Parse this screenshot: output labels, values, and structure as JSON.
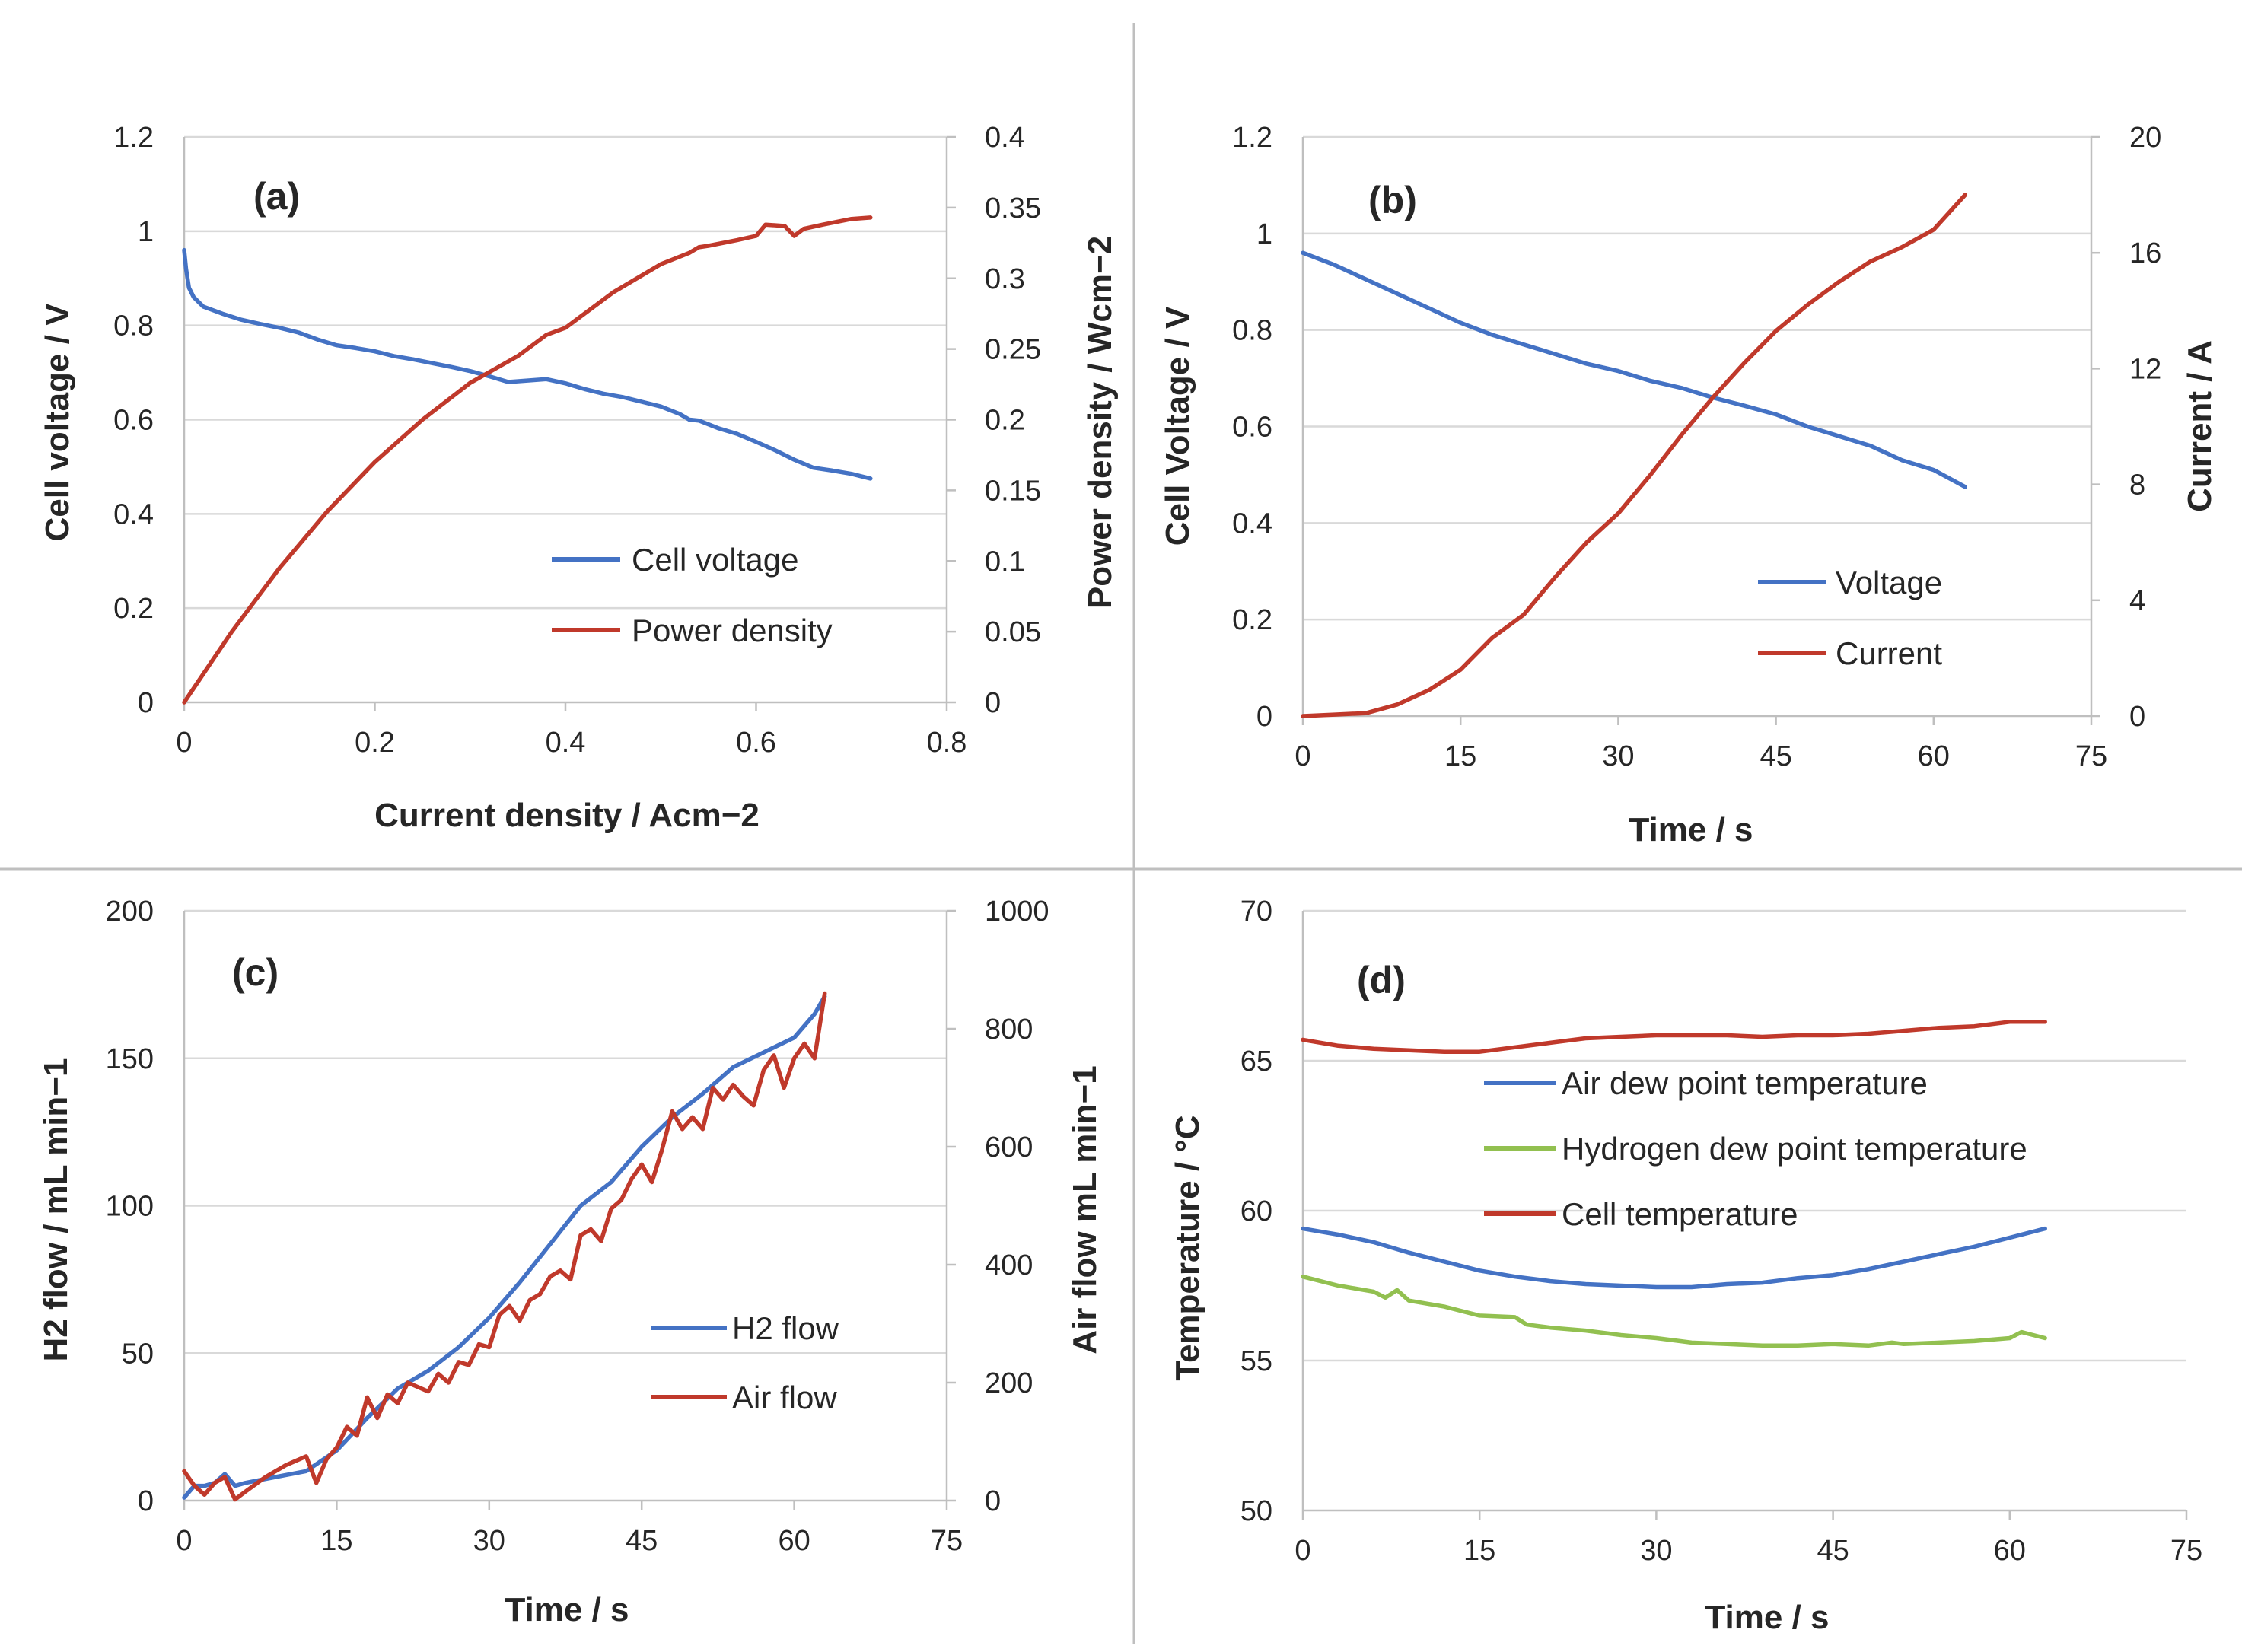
{
  "colors": {
    "blue": "#4472c4",
    "red": "#c0392b",
    "green": "#92c050"
  },
  "chart_data": [
    {
      "id": "a",
      "type": "line",
      "panel_label": "(a)",
      "xlabel": "Current density / Acm−2",
      "ylabel": "Cell voltage / V",
      "y2label": "Power density / Wcm−2",
      "xlim": [
        0,
        0.8
      ],
      "ylim": [
        0,
        1.2
      ],
      "y2lim": [
        0,
        0.4
      ],
      "xticks": [
        "0",
        "0.2",
        "0.4",
        "0.6",
        "0.8"
      ],
      "yticks": [
        "0",
        "0.2",
        "0.4",
        "0.6",
        "0.8",
        "1",
        "1.2"
      ],
      "y2ticks": [
        "0",
        "0.05",
        "0.1",
        "0.15",
        "0.2",
        "0.25",
        "0.3",
        "0.35",
        "0.4"
      ],
      "legend_position": "lower-right",
      "series": [
        {
          "name": "Cell voltage",
          "color": "blue",
          "axis": "left",
          "x": [
            0,
            0.002,
            0.005,
            0.01,
            0.02,
            0.04,
            0.06,
            0.08,
            0.1,
            0.12,
            0.14,
            0.16,
            0.18,
            0.2,
            0.22,
            0.24,
            0.26,
            0.28,
            0.3,
            0.32,
            0.34,
            0.36,
            0.38,
            0.4,
            0.42,
            0.44,
            0.46,
            0.48,
            0.5,
            0.52,
            0.53,
            0.54,
            0.56,
            0.58,
            0.6,
            0.62,
            0.64,
            0.66,
            0.68,
            0.7,
            0.72
          ],
          "y": [
            0.96,
            0.92,
            0.88,
            0.86,
            0.84,
            0.825,
            0.812,
            0.803,
            0.795,
            0.785,
            0.77,
            0.758,
            0.752,
            0.745,
            0.735,
            0.728,
            0.72,
            0.712,
            0.703,
            0.692,
            0.68,
            0.683,
            0.686,
            0.677,
            0.665,
            0.655,
            0.648,
            0.638,
            0.628,
            0.612,
            0.6,
            0.598,
            0.582,
            0.57,
            0.553,
            0.535,
            0.515,
            0.498,
            0.492,
            0.485,
            0.475
          ]
        },
        {
          "name": "Power density",
          "color": "red",
          "axis": "right",
          "x": [
            0,
            0.05,
            0.1,
            0.15,
            0.2,
            0.25,
            0.3,
            0.35,
            0.38,
            0.4,
            0.45,
            0.5,
            0.53,
            0.54,
            0.55,
            0.58,
            0.6,
            0.61,
            0.63,
            0.64,
            0.65,
            0.67,
            0.7,
            0.72
          ],
          "y": [
            0,
            0.05,
            0.095,
            0.135,
            0.17,
            0.2,
            0.226,
            0.245,
            0.26,
            0.265,
            0.29,
            0.31,
            0.318,
            0.322,
            0.323,
            0.327,
            0.33,
            0.338,
            0.337,
            0.33,
            0.335,
            0.338,
            0.342,
            0.343
          ]
        }
      ]
    },
    {
      "id": "b",
      "type": "line",
      "panel_label": "(b)",
      "xlabel": "Time / s",
      "ylabel": "Cell Voltage / V",
      "y2label": "Current / A",
      "xlim": [
        0,
        75
      ],
      "ylim": [
        0,
        1.2
      ],
      "y2lim": [
        0,
        20
      ],
      "xticks": [
        "0",
        "15",
        "30",
        "45",
        "60",
        "75"
      ],
      "yticks": [
        "0",
        "0.2",
        "0.4",
        "0.6",
        "0.8",
        "1",
        "1.2"
      ],
      "y2ticks": [
        "0",
        "4",
        "8",
        "12",
        "16",
        "20"
      ],
      "legend_position": "lower-right",
      "series": [
        {
          "name": "Voltage",
          "color": "blue",
          "axis": "left",
          "x": [
            0,
            3,
            6,
            9,
            12,
            15,
            18,
            21,
            24,
            27,
            30,
            33,
            36,
            39,
            42,
            45,
            48,
            51,
            54,
            57,
            60,
            63
          ],
          "y": [
            0.96,
            0.935,
            0.905,
            0.875,
            0.845,
            0.815,
            0.79,
            0.77,
            0.75,
            0.73,
            0.715,
            0.695,
            0.68,
            0.66,
            0.643,
            0.625,
            0.6,
            0.58,
            0.56,
            0.53,
            0.51,
            0.475
          ]
        },
        {
          "name": "Current",
          "color": "red",
          "axis": "right",
          "x": [
            0,
            3,
            6,
            9,
            12,
            15,
            18,
            21,
            24,
            27,
            30,
            33,
            36,
            39,
            42,
            45,
            48,
            51,
            54,
            57,
            60,
            63
          ],
          "y": [
            0,
            0.05,
            0.1,
            0.4,
            0.9,
            1.6,
            2.7,
            3.5,
            4.8,
            6.0,
            7.0,
            8.3,
            9.7,
            11.0,
            12.2,
            13.3,
            14.2,
            15.0,
            15.7,
            16.2,
            16.8,
            18.0
          ]
        }
      ]
    },
    {
      "id": "c",
      "type": "line",
      "panel_label": "(c)",
      "xlabel": "Time / s",
      "ylabel": "H2 flow / mL min−1",
      "y2label": "Air flow mL min−1",
      "xlim": [
        0,
        75
      ],
      "ylim": [
        0,
        200
      ],
      "y2lim": [
        0,
        1000
      ],
      "xticks": [
        "0",
        "15",
        "30",
        "45",
        "60",
        "75"
      ],
      "yticks": [
        "0",
        "50",
        "100",
        "150",
        "200"
      ],
      "y2ticks": [
        "0",
        "200",
        "400",
        "600",
        "800",
        "1000"
      ],
      "legend_position": "lower-right",
      "series": [
        {
          "name": "H2 flow",
          "color": "blue",
          "axis": "left",
          "x": [
            0,
            1,
            2,
            3,
            4,
            5,
            6,
            9,
            12,
            15,
            18,
            21,
            24,
            27,
            30,
            33,
            36,
            39,
            42,
            45,
            48,
            51,
            54,
            57,
            60,
            62,
            63
          ],
          "y": [
            1,
            5,
            5,
            6,
            9,
            5,
            6,
            8,
            10,
            17,
            28,
            38,
            44,
            52,
            62,
            74,
            87,
            100,
            108,
            120,
            130,
            138,
            147,
            152,
            157,
            165,
            171
          ]
        },
        {
          "name": "Air flow",
          "color": "red",
          "axis": "right",
          "x": [
            0,
            1,
            2,
            3,
            4,
            5,
            6,
            8,
            10,
            12,
            13,
            14,
            15,
            16,
            17,
            18,
            19,
            20,
            21,
            22,
            24,
            25,
            26,
            27,
            28,
            29,
            30,
            31,
            32,
            33,
            34,
            35,
            36,
            37,
            38,
            39,
            40,
            41,
            42,
            43,
            44,
            45,
            46,
            47,
            48,
            49,
            50,
            51,
            52,
            53,
            54,
            55,
            56,
            57,
            58,
            59,
            60,
            61,
            62,
            63
          ],
          "y": [
            50,
            25,
            10,
            30,
            40,
            2,
            15,
            40,
            60,
            75,
            30,
            70,
            90,
            125,
            110,
            175,
            140,
            180,
            165,
            200,
            185,
            215,
            200,
            235,
            230,
            265,
            260,
            315,
            330,
            305,
            340,
            350,
            380,
            390,
            375,
            450,
            460,
            440,
            495,
            510,
            545,
            570,
            540,
            595,
            660,
            630,
            650,
            630,
            700,
            680,
            705,
            685,
            670,
            730,
            755,
            700,
            750,
            775,
            750,
            860
          ]
        }
      ]
    },
    {
      "id": "d",
      "type": "line",
      "panel_label": "(d)",
      "xlabel": "Time / s",
      "ylabel": "Temperature / °C",
      "xlim": [
        0,
        75
      ],
      "ylim": [
        50,
        70
      ],
      "xticks": [
        "0",
        "15",
        "30",
        "45",
        "60",
        "75"
      ],
      "yticks": [
        "50",
        "55",
        "60",
        "65",
        "70"
      ],
      "legend_position": "upper-right",
      "series": [
        {
          "name": "Air dew point temperature",
          "color": "blue",
          "axis": "left",
          "x": [
            0,
            3,
            6,
            9,
            12,
            15,
            18,
            21,
            24,
            27,
            30,
            33,
            36,
            39,
            42,
            45,
            48,
            51,
            54,
            57,
            60,
            63
          ],
          "y": [
            59.4,
            59.2,
            58.95,
            58.6,
            58.3,
            58.0,
            57.8,
            57.65,
            57.55,
            57.5,
            57.45,
            57.45,
            57.55,
            57.6,
            57.75,
            57.85,
            58.05,
            58.3,
            58.55,
            58.8,
            59.1,
            59.4
          ]
        },
        {
          "name": "Hydrogen dew point temperature",
          "color": "green",
          "axis": "left",
          "x": [
            0,
            3,
            6,
            7,
            8,
            9,
            12,
            15,
            18,
            19,
            21,
            24,
            27,
            30,
            33,
            36,
            39,
            42,
            45,
            48,
            50,
            51,
            54,
            57,
            60,
            61,
            63
          ],
          "y": [
            57.8,
            57.5,
            57.3,
            57.1,
            57.35,
            57.0,
            56.8,
            56.5,
            56.45,
            56.2,
            56.1,
            56.0,
            55.85,
            55.75,
            55.6,
            55.55,
            55.5,
            55.5,
            55.55,
            55.5,
            55.6,
            55.55,
            55.6,
            55.65,
            55.75,
            55.95,
            55.75
          ]
        },
        {
          "name": "Cell temperature",
          "color": "red",
          "axis": "left",
          "x": [
            0,
            3,
            6,
            9,
            12,
            15,
            18,
            21,
            24,
            27,
            30,
            33,
            36,
            39,
            42,
            45,
            48,
            51,
            54,
            57,
            60,
            63
          ],
          "y": [
            65.7,
            65.5,
            65.4,
            65.35,
            65.3,
            65.3,
            65.45,
            65.6,
            65.75,
            65.8,
            65.85,
            65.85,
            65.85,
            65.8,
            65.85,
            65.85,
            65.9,
            66.0,
            66.1,
            66.15,
            66.3,
            66.3
          ]
        }
      ]
    }
  ]
}
